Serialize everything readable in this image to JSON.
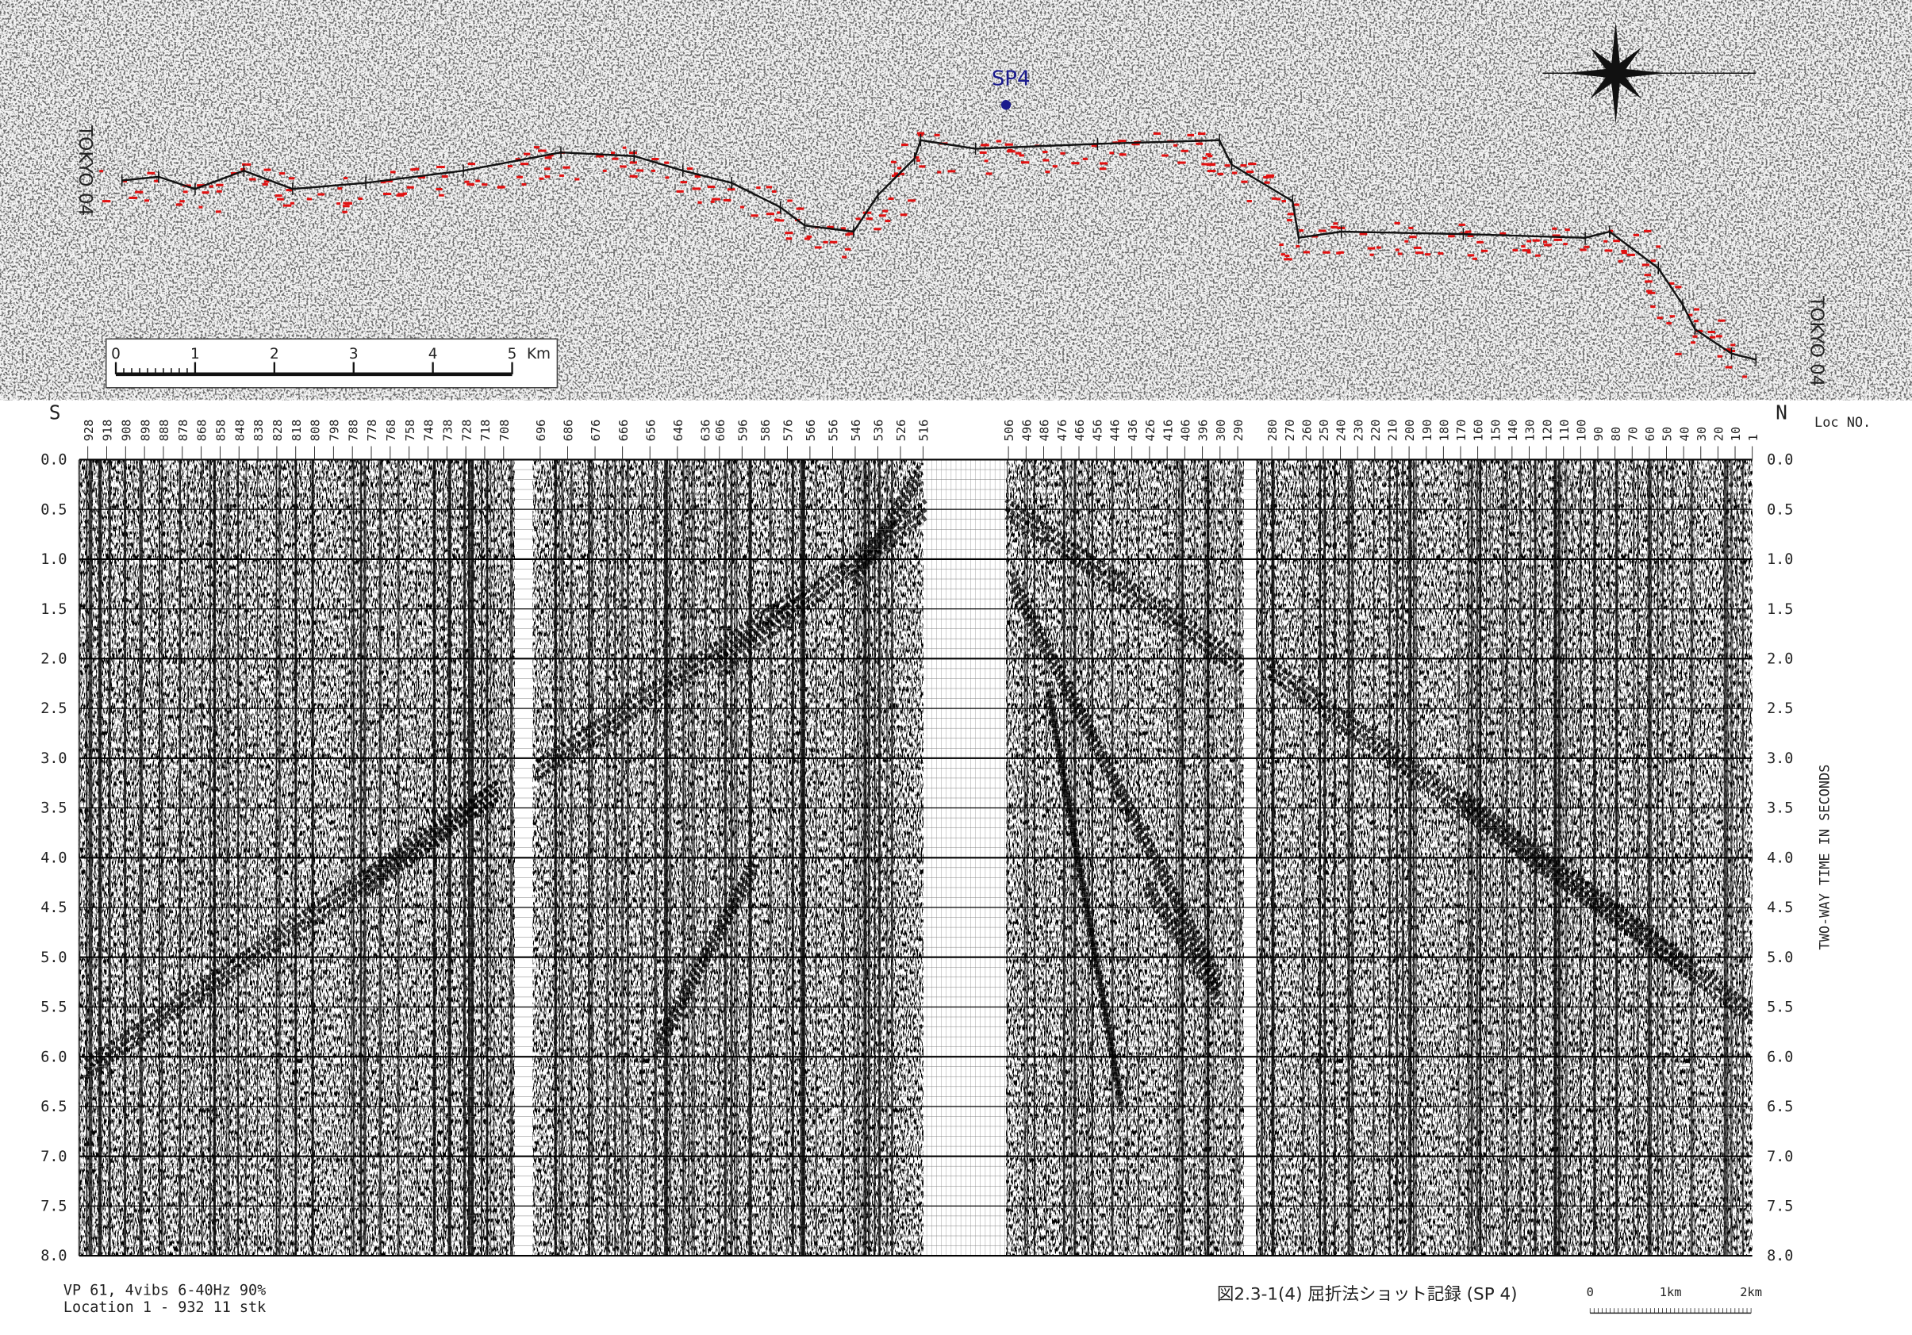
{
  "map": {
    "marker": "SP4",
    "line_name_left": "TOKYO 04",
    "line_name_right": "TOKYO 04",
    "scale_labels": [
      "0",
      "1",
      "2",
      "3",
      "4",
      "5"
    ],
    "scale_unit": "Km"
  },
  "record": {
    "south": "S",
    "north": "N",
    "loc_header": "Loc NO.",
    "loc_segments": [
      [
        "928",
        "918",
        "908",
        "898",
        "888",
        "878",
        "868",
        "858",
        "848",
        "838",
        "828",
        "818",
        "808",
        "798",
        "788",
        "778",
        "768",
        "758",
        "748",
        "738",
        "728",
        "718",
        "708"
      ],
      [
        "696",
        "686",
        "676",
        "666",
        "656",
        "646",
        "636"
      ],
      [
        "606",
        "596",
        "586",
        "576",
        "566",
        "556",
        "546",
        "536",
        "526",
        "516"
      ],
      [
        "506",
        "496",
        "486",
        "476",
        "466",
        "456",
        "446",
        "436",
        "426",
        "416",
        "406",
        "396",
        "300",
        "290"
      ],
      [
        "280",
        "270",
        "260",
        "250",
        "240",
        "230",
        "220",
        "210",
        "200",
        "190",
        "180",
        "170",
        "160",
        "150",
        "140",
        "130",
        "120",
        "110",
        "100",
        "90",
        "80",
        "70",
        "60",
        "50",
        "40",
        "30",
        "20",
        "10",
        "1"
      ]
    ],
    "time_labels": [
      "0.0",
      "0.5",
      "1.0",
      "1.5",
      "2.0",
      "2.5",
      "3.0",
      "3.5",
      "4.0",
      "4.5",
      "5.0",
      "5.5",
      "6.0",
      "6.5",
      "7.0",
      "7.5",
      "8.0"
    ],
    "time_axis_title": "TWO-WAY TIME IN SECONDS"
  },
  "footer": {
    "acquisition": "VP 61, 4vibs 6-40Hz 90%",
    "location": "Location 1 - 932  11 stk",
    "caption": "図2.3-1(4) 屈折法ショット記録 (SP 4)",
    "scale_labels": [
      "0",
      "1km",
      "2km"
    ]
  }
}
